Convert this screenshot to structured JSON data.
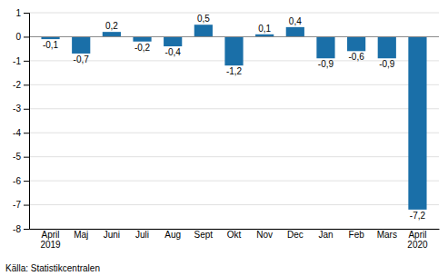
{
  "chart_data": {
    "type": "bar",
    "categories": [
      "April\n2019",
      "Maj",
      "Juni",
      "Juli",
      "Aug",
      "Sept",
      "Okt",
      "Nov",
      "Dec",
      "Jan",
      "Feb",
      "Mars",
      "April\n2020"
    ],
    "values": [
      -0.1,
      -0.7,
      0.2,
      -0.2,
      -0.4,
      0.5,
      -1.2,
      0.1,
      0.4,
      -0.9,
      -0.6,
      -0.9,
      -7.2
    ],
    "value_labels": [
      "-0,1",
      "-0,7",
      "0,2",
      "-0,2",
      "-0,4",
      "0,5",
      "-1,2",
      "0,1",
      "0,4",
      "-0,9",
      "-0,6",
      "-0,9",
      "-7,2"
    ],
    "data_labels": true,
    "color": "#1a6fa8",
    "ylim": [
      -8,
      1
    ],
    "yticks": [
      -8,
      -7,
      -6,
      -5,
      -4,
      -3,
      -2,
      -1,
      0,
      1
    ],
    "grid": true,
    "annotation": "Källa: Statistikcentralen"
  }
}
